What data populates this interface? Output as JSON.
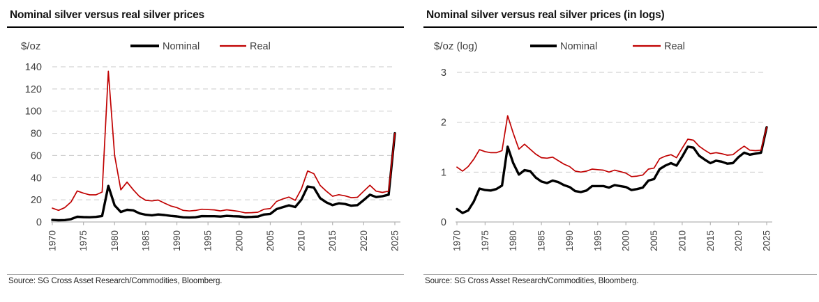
{
  "colors": {
    "nominal_line": "#000000",
    "real_line": "#c00000",
    "gridline": "#c9c9c9",
    "axis": "#b3b3b3",
    "tick_text": "#404040",
    "title_text": "#141414"
  },
  "chart_data": [
    {
      "type": "line",
      "title": "Nominal silver versus real silver prices",
      "unit_label": "$/oz",
      "legend_position": "top",
      "grid": "horizontal-dashed",
      "ylim": [
        0,
        140
      ],
      "y_ticks": [
        0,
        20,
        40,
        60,
        80,
        100,
        120,
        140
      ],
      "x_ticks": [
        1970,
        1975,
        1980,
        1985,
        1990,
        1995,
        2000,
        2005,
        2010,
        2015,
        2020,
        2025
      ],
      "years": [
        1970,
        1971,
        1972,
        1973,
        1974,
        1975,
        1976,
        1977,
        1978,
        1979,
        1980,
        1981,
        1982,
        1983,
        1984,
        1985,
        1986,
        1987,
        1988,
        1989,
        1990,
        1991,
        1992,
        1993,
        1994,
        1995,
        1996,
        1997,
        1998,
        1999,
        2000,
        2001,
        2002,
        2003,
        2004,
        2005,
        2006,
        2007,
        2008,
        2009,
        2010,
        2011,
        2012,
        2013,
        2014,
        2015,
        2016,
        2017,
        2018,
        2019,
        2020,
        2021,
        2022,
        2023,
        2024,
        2025
      ],
      "series": [
        {
          "name": "Nominal",
          "color": "#000000",
          "values": [
            1.8,
            1.5,
            1.7,
            2.6,
            4.7,
            4.4,
            4.3,
            4.6,
            5.4,
            32.5,
            15,
            9,
            11,
            10.5,
            7.8,
            6.5,
            6,
            6.8,
            6.3,
            5.5,
            5,
            4.2,
            4,
            4.3,
            5.3,
            5.2,
            5.2,
            4.9,
            5.5,
            5.2,
            5,
            4.4,
            4.6,
            4.9,
            6.7,
            7.3,
            11.6,
            13.4,
            15,
            13.5,
            20.2,
            32,
            31,
            21.5,
            17.7,
            15.2,
            16.8,
            16.2,
            14.7,
            15.2,
            19.8,
            24.6,
            22.5,
            23.2,
            24.6,
            80
          ]
        },
        {
          "name": "Real",
          "color": "#c00000",
          "values": [
            12.5,
            10.5,
            13,
            18,
            28,
            26,
            24.5,
            24.5,
            27,
            136,
            60,
            29,
            36,
            29,
            23,
            19.5,
            19,
            19.8,
            17,
            14.5,
            13,
            10.5,
            9.9,
            10.4,
            11.5,
            11.2,
            10.9,
            10,
            11,
            10.3,
            9.5,
            8.2,
            8.4,
            8.8,
            11.5,
            12.1,
            18.5,
            20.8,
            22.5,
            19.5,
            29.9,
            46,
            43.6,
            33,
            27.8,
            23.2,
            24.6,
            23.6,
            21.9,
            22.3,
            27.8,
            33.1,
            27.8,
            26.7,
            27.8,
            80
          ]
        }
      ],
      "source": "Source: SG Cross Asset Research/Commodities, Bloomberg."
    },
    {
      "type": "line",
      "title": "Nominal silver versus real silver prices (in logs)",
      "unit_label": "$/oz (log)",
      "legend_position": "top",
      "grid": "horizontal-dashed",
      "ylim": [
        0,
        3
      ],
      "y_ticks": [
        0,
        1,
        2,
        3
      ],
      "x_ticks": [
        1970,
        1975,
        1980,
        1985,
        1990,
        1995,
        2000,
        2005,
        2010,
        2015,
        2020,
        2025
      ],
      "years": [
        1970,
        1971,
        1972,
        1973,
        1974,
        1975,
        1976,
        1977,
        1978,
        1979,
        1980,
        1981,
        1982,
        1983,
        1984,
        1985,
        1986,
        1987,
        1988,
        1989,
        1990,
        1991,
        1992,
        1993,
        1994,
        1995,
        1996,
        1997,
        1998,
        1999,
        2000,
        2001,
        2002,
        2003,
        2004,
        2005,
        2006,
        2007,
        2008,
        2009,
        2010,
        2011,
        2012,
        2013,
        2014,
        2015,
        2016,
        2017,
        2018,
        2019,
        2020,
        2021,
        2022,
        2023,
        2024,
        2025
      ],
      "series": [
        {
          "name": "Nominal",
          "color": "#000000",
          "values": [
            0.26,
            0.18,
            0.23,
            0.41,
            0.67,
            0.64,
            0.63,
            0.66,
            0.73,
            1.51,
            1.18,
            0.95,
            1.04,
            1.02,
            0.89,
            0.81,
            0.78,
            0.83,
            0.8,
            0.74,
            0.7,
            0.62,
            0.6,
            0.63,
            0.72,
            0.72,
            0.72,
            0.69,
            0.74,
            0.72,
            0.7,
            0.64,
            0.66,
            0.69,
            0.83,
            0.86,
            1.06,
            1.13,
            1.18,
            1.13,
            1.31,
            1.51,
            1.49,
            1.33,
            1.25,
            1.18,
            1.23,
            1.21,
            1.17,
            1.18,
            1.3,
            1.39,
            1.35,
            1.37,
            1.39,
            1.9
          ]
        },
        {
          "name": "Real",
          "color": "#c00000",
          "values": [
            1.1,
            1.02,
            1.11,
            1.26,
            1.45,
            1.41,
            1.39,
            1.39,
            1.43,
            2.13,
            1.78,
            1.46,
            1.56,
            1.46,
            1.36,
            1.29,
            1.28,
            1.3,
            1.23,
            1.16,
            1.11,
            1.02,
            1.0,
            1.02,
            1.06,
            1.05,
            1.04,
            1.0,
            1.04,
            1.01,
            0.98,
            0.91,
            0.92,
            0.94,
            1.06,
            1.08,
            1.27,
            1.32,
            1.35,
            1.29,
            1.48,
            1.66,
            1.64,
            1.52,
            1.44,
            1.37,
            1.39,
            1.37,
            1.34,
            1.35,
            1.44,
            1.52,
            1.44,
            1.43,
            1.44,
            1.9
          ]
        }
      ],
      "source": "Source: SG Cross Asset Research/Commodities, Bloomberg."
    }
  ]
}
